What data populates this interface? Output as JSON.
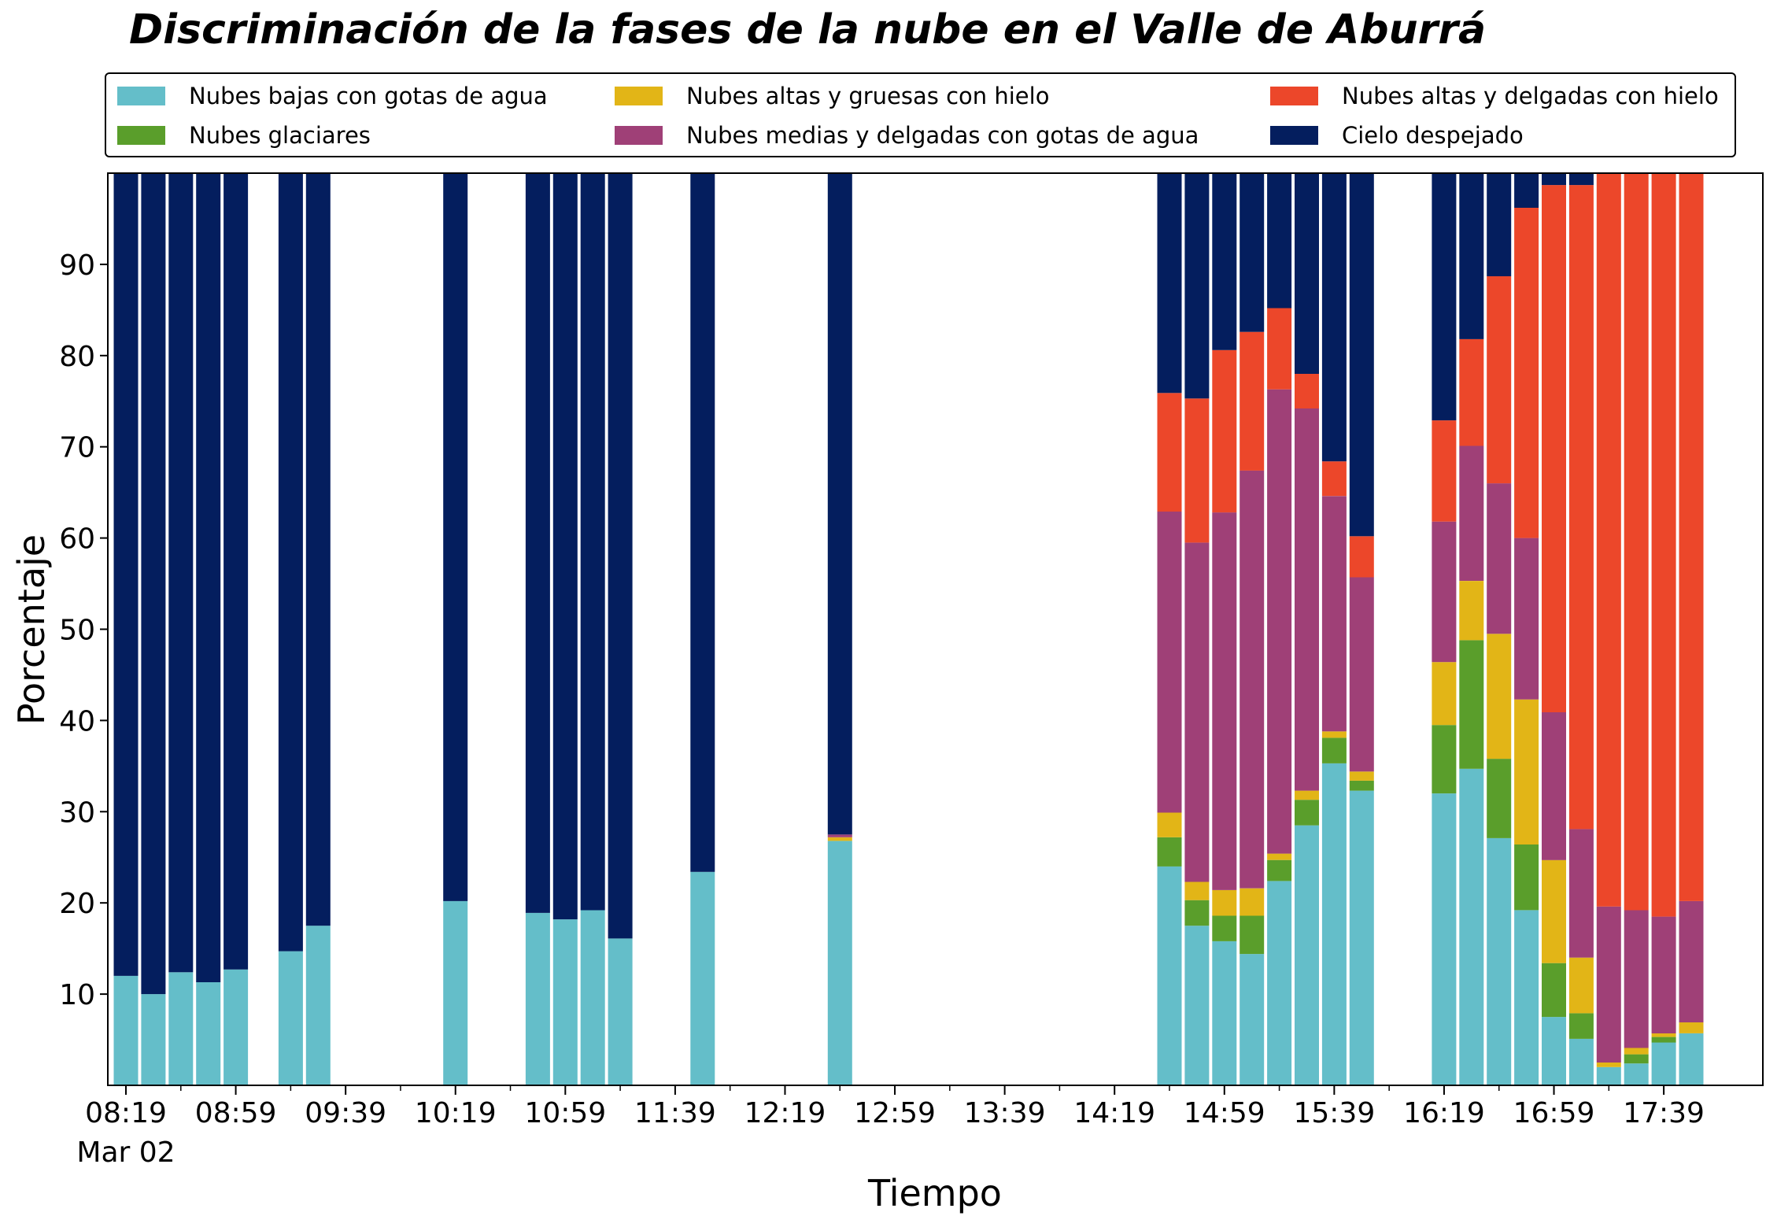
{
  "chart_data": {
    "type": "bar",
    "stacked": true,
    "title": "Discriminación de la fases de la nube en el Valle de Aburrá",
    "xlabel": "Tiempo",
    "ylabel": "Porcentaje",
    "ylim": [
      0,
      100
    ],
    "yticks": [
      "10",
      "20",
      "30",
      "40",
      "50",
      "60",
      "70",
      "80",
      "90"
    ],
    "x_start": "08:19",
    "x_end": "17:49",
    "x_tick_labels": [
      "08:19",
      "08:59",
      "09:39",
      "10:19",
      "10:59",
      "11:39",
      "12:19",
      "12:59",
      "13:39",
      "14:19",
      "14:59",
      "15:39",
      "16:19",
      "16:59",
      "17:39"
    ],
    "x_date_label": "Mar 02",
    "grid": false,
    "legend_position": "top",
    "x": [
      "08:19",
      "08:29",
      "08:39",
      "08:49",
      "08:59",
      "09:19",
      "09:29",
      "10:19",
      "10:49",
      "10:59",
      "11:09",
      "11:19",
      "11:49",
      "12:39",
      "14:39",
      "14:49",
      "14:59",
      "15:09",
      "15:19",
      "15:29",
      "15:39",
      "15:49",
      "16:19",
      "16:29",
      "16:39",
      "16:49",
      "16:59",
      "17:09",
      "17:19",
      "17:29",
      "17:39",
      "17:49"
    ],
    "series": [
      {
        "name": "Nubes bajas con gotas de agua",
        "color": "#64bec9",
        "values": [
          12.0,
          10.0,
          12.4,
          11.3,
          12.7,
          14.7,
          17.5,
          20.2,
          18.9,
          18.2,
          19.2,
          16.1,
          23.4,
          26.8,
          24.0,
          17.5,
          15.8,
          14.4,
          22.4,
          28.5,
          35.3,
          32.3,
          32.0,
          34.7,
          27.1,
          19.2,
          7.5,
          5.1,
          2.0,
          2.4,
          4.7,
          5.7
        ]
      },
      {
        "name": "Nubes glaciares",
        "color": "#5a9e2b",
        "values": [
          0,
          0,
          0,
          0,
          0,
          0,
          0,
          0,
          0,
          0,
          0,
          0,
          0,
          0,
          3.2,
          2.8,
          2.8,
          4.2,
          2.3,
          2.8,
          2.8,
          1.1,
          7.5,
          14.1,
          8.7,
          7.2,
          5.9,
          2.8,
          0,
          1.0,
          0.6,
          0
        ]
      },
      {
        "name": "Nubes altas y gruesas con hielo",
        "color": "#e2b517",
        "values": [
          0,
          0,
          0,
          0,
          0,
          0,
          0,
          0,
          0,
          0,
          0,
          0,
          0,
          0.4,
          2.7,
          2.0,
          2.8,
          3.0,
          0.7,
          1.0,
          0.7,
          1.0,
          6.9,
          6.5,
          13.7,
          15.9,
          11.3,
          6.1,
          0.5,
          0.7,
          0.4,
          1.2
        ]
      },
      {
        "name": "Nubes medias y delgadas con gotas de agua",
        "color": "#9f4077",
        "values": [
          0,
          0,
          0,
          0,
          0,
          0,
          0,
          0,
          0,
          0,
          0,
          0,
          0,
          0.3,
          33.0,
          37.2,
          41.4,
          45.8,
          50.9,
          41.9,
          25.8,
          21.3,
          15.4,
          14.8,
          16.5,
          17.7,
          16.2,
          14.1,
          17.1,
          15.1,
          12.8,
          13.3
        ]
      },
      {
        "name": "Nubes altas y delgadas con hielo",
        "color": "#ec472a",
        "values": [
          0,
          0,
          0,
          0,
          0,
          0,
          0,
          0,
          0,
          0,
          0,
          0,
          0,
          0,
          13.0,
          15.8,
          17.8,
          15.2,
          8.9,
          3.8,
          3.8,
          4.5,
          11.1,
          11.7,
          22.7,
          36.2,
          57.8,
          70.6,
          80.4,
          80.8,
          81.5,
          79.8
        ]
      },
      {
        "name": "Cielo despejado",
        "color": "#041e5e",
        "values": [
          88.0,
          90.0,
          87.6,
          88.7,
          87.3,
          85.3,
          82.5,
          79.8,
          81.1,
          81.8,
          80.8,
          83.9,
          76.6,
          72.5,
          24.1,
          24.7,
          19.4,
          17.4,
          14.8,
          22.0,
          31.6,
          39.8,
          27.1,
          18.2,
          11.3,
          3.8,
          1.3,
          1.3,
          0,
          0,
          0,
          0
        ]
      }
    ]
  }
}
